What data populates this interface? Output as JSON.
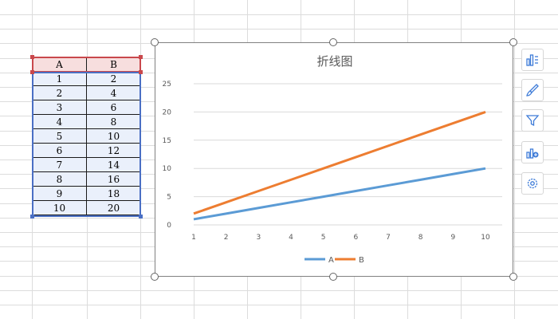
{
  "table": {
    "headers": [
      "A",
      "B"
    ],
    "rows": [
      [
        "1",
        "2"
      ],
      [
        "2",
        "4"
      ],
      [
        "3",
        "6"
      ],
      [
        "4",
        "8"
      ],
      [
        "5",
        "10"
      ],
      [
        "6",
        "12"
      ],
      [
        "7",
        "14"
      ],
      [
        "8",
        "16"
      ],
      [
        "9",
        "18"
      ],
      [
        "10",
        "20"
      ]
    ]
  },
  "colors": {
    "header_selection": "#c9484c",
    "data_selection": "#4a6fc4",
    "series_a": "#5b9bd5",
    "series_b": "#ed7d31"
  },
  "side_toolbar": {
    "icons": [
      "chart-elements-icon",
      "chart-style-icon",
      "chart-filter-icon",
      "chart-type-icon",
      "settings-icon"
    ]
  },
  "chart_data": {
    "type": "line",
    "title": "折线图",
    "x": [
      1,
      2,
      3,
      4,
      5,
      6,
      7,
      8,
      9,
      10
    ],
    "series": [
      {
        "name": "A",
        "values": [
          1,
          2,
          3,
          4,
          5,
          6,
          7,
          8,
          9,
          10
        ]
      },
      {
        "name": "B",
        "values": [
          2,
          4,
          6,
          8,
          10,
          12,
          14,
          16,
          18,
          20
        ]
      }
    ],
    "ylim": [
      0,
      25
    ],
    "yticks": [
      0,
      5,
      10,
      15,
      20,
      25
    ],
    "grid": true,
    "legend": "bottom"
  }
}
